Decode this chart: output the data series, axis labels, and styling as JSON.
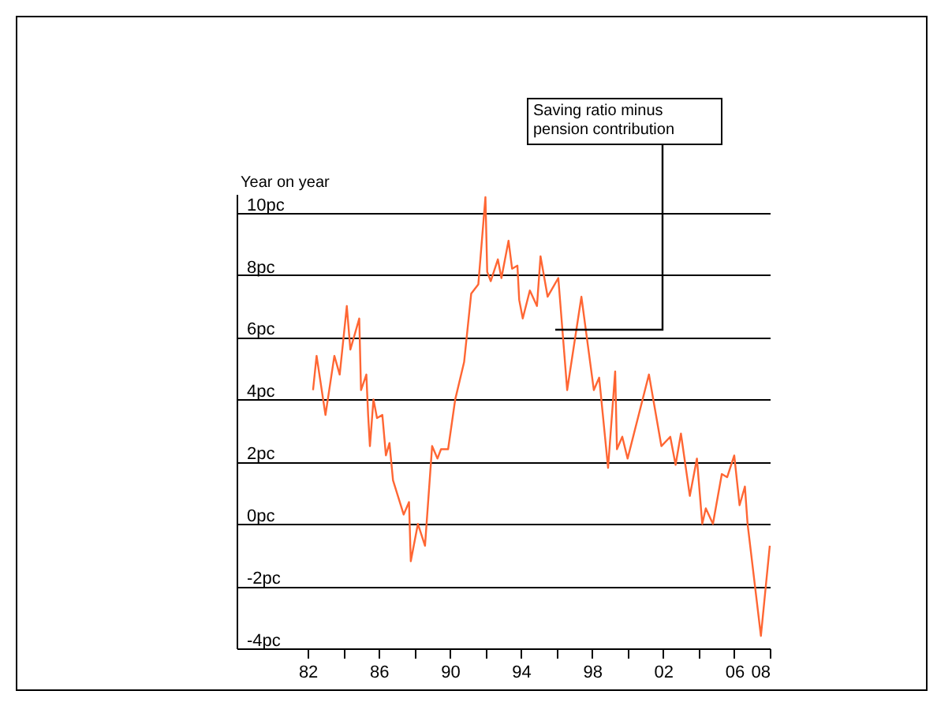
{
  "chart_data": {
    "type": "line",
    "ylabel": "Year on year",
    "annotations": [
      "Saving ratio minus pension contribution"
    ],
    "x": [
      1982.3,
      1982.5,
      1983.0,
      1983.5,
      1983.8,
      1984.2,
      1984.4,
      1984.9,
      1985.0,
      1985.3,
      1985.4,
      1985.5,
      1985.7,
      1985.9,
      1986.2,
      1986.4,
      1986.6,
      1986.8,
      1987.4,
      1987.7,
      1987.8,
      1988.2,
      1988.6,
      1989.0,
      1989.3,
      1989.5,
      1989.9,
      1990.3,
      1990.8,
      1991.2,
      1991.6,
      1992.0,
      1992.1,
      1992.3,
      1992.7,
      1992.9,
      1993.3,
      1993.5,
      1993.8,
      1993.9,
      1994.1,
      1994.5,
      1994.9,
      1995.1,
      1995.5,
      1995.9,
      1996.1,
      1996.6,
      1997.4,
      1998.1,
      1998.4,
      1998.9,
      1999.3,
      1999.4,
      1999.7,
      2000.0,
      2001.2,
      2001.9,
      2002.4,
      2002.7,
      2003.0,
      2003.5,
      2003.9,
      2004.2,
      2004.4,
      2004.8,
      2005.3,
      2005.6,
      2006.0,
      2006.3,
      2006.6,
      2006.75,
      2007.5,
      2008.0
    ],
    "series": [
      {
        "color": "#ff6633",
        "values": [
          4.3,
          5.4,
          3.5,
          5.4,
          4.8,
          7.0,
          5.6,
          6.6,
          4.3,
          4.8,
          3.5,
          2.5,
          4.0,
          3.4,
          3.5,
          2.2,
          2.6,
          1.4,
          0.3,
          0.7,
          -1.2,
          0,
          -0.7,
          2.5,
          2.1,
          2.4,
          2.4,
          4.0,
          5.2,
          7.4,
          7.7,
          10.5,
          8.1,
          7.8,
          8.5,
          7.9,
          9.1,
          8.2,
          8.3,
          7.2,
          6.6,
          7.5,
          7.0,
          8.6,
          7.3,
          7.7,
          7.9,
          4.3,
          7.3,
          4.3,
          4.7,
          1.8,
          4.9,
          2.4,
          2.8,
          2.1,
          4.8,
          2.5,
          2.8,
          1.9,
          2.9,
          0.9,
          2.1,
          0,
          0.5,
          0,
          1.6,
          1.5,
          2.2,
          0.6,
          1.2,
          0,
          -3.6,
          -0.7
        ]
      }
    ],
    "xlim": [
      1978,
      2008
    ],
    "xticks": [
      {
        "value": 1982,
        "label": "82"
      },
      {
        "value": 1984,
        "label": null
      },
      {
        "value": 1986,
        "label": "86"
      },
      {
        "value": 1988,
        "label": null
      },
      {
        "value": 1990,
        "label": "90"
      },
      {
        "value": 1992,
        "label": null
      },
      {
        "value": 1994,
        "label": "94"
      },
      {
        "value": 1996,
        "label": null
      },
      {
        "value": 1998,
        "label": "98"
      },
      {
        "value": 2000,
        "label": null
      },
      {
        "value": 2002,
        "label": "02"
      },
      {
        "value": 2004,
        "label": null
      },
      {
        "value": 2006,
        "label": "06"
      },
      {
        "value": 2008,
        "label": "08"
      }
    ],
    "ylim": [
      -4,
      10.6
    ],
    "yticks": [
      {
        "value": -4,
        "label": "-4pc"
      },
      {
        "value": -2,
        "label": "-2pc"
      },
      {
        "value": 0,
        "label": "0pc"
      },
      {
        "value": 2,
        "label": "2pc"
      },
      {
        "value": 4,
        "label": "4pc"
      },
      {
        "value": 6,
        "label": "6pc"
      },
      {
        "value": 8,
        "label": "8pc"
      },
      {
        "value": 10,
        "label": "10pc"
      }
    ],
    "grid": "y",
    "marker": "none",
    "line_style": "solid"
  }
}
